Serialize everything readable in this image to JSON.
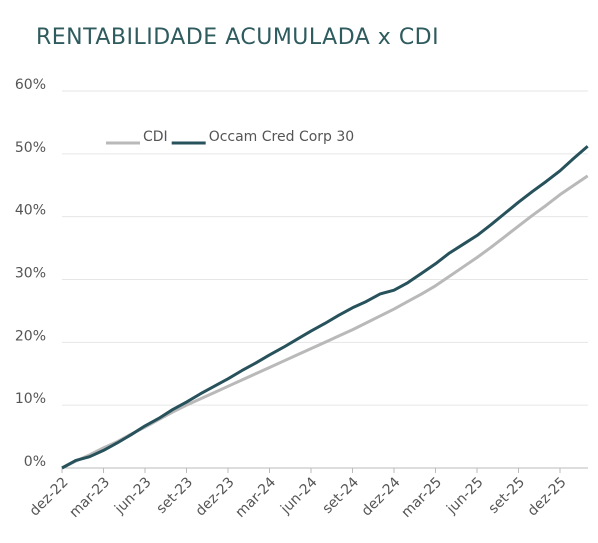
{
  "chart_data": {
    "type": "line",
    "title": "RENTABILIDADE ACUMULADA x CDI",
    "categories": [
      "dez-22",
      null,
      null,
      "mar-23",
      null,
      null,
      "jun-23",
      null,
      null,
      "set-23",
      null,
      null,
      "dez-23",
      null,
      null,
      "mar-24",
      null,
      null,
      "jun-24",
      null,
      null,
      "set-24",
      null,
      null,
      "dez-24",
      null,
      null,
      "mar-25",
      null,
      null,
      "jun-25",
      null,
      null,
      "set-25",
      null,
      null,
      "dez-25",
      null,
      null
    ],
    "series": [
      {
        "name": "CDI",
        "color": "#b9b9b9",
        "values": [
          0,
          1.1,
          2.1,
          3.2,
          4.2,
          5.4,
          6.5,
          7.7,
          8.9,
          10.0,
          11.0,
          12.0,
          13.0,
          14.0,
          15.0,
          16.0,
          17.0,
          18.0,
          19.0,
          20.0,
          21.0,
          22.0,
          23.1,
          24.2,
          25.3,
          26.5,
          27.7,
          29.0,
          30.5,
          32.0,
          33.5,
          35.1,
          36.8,
          38.5,
          40.2,
          41.8,
          43.5,
          45.0,
          46.5
        ]
      },
      {
        "name": "Occam Cred Corp 30",
        "color": "#27525c",
        "values": [
          0,
          1.2,
          1.8,
          2.8,
          4.0,
          5.3,
          6.7,
          7.9,
          9.3,
          10.5,
          11.8,
          13.0,
          14.2,
          15.5,
          16.7,
          18.0,
          19.2,
          20.5,
          21.8,
          23.0,
          24.3,
          25.5,
          26.5,
          27.7,
          28.3,
          29.5,
          31.0,
          32.5,
          34.2,
          35.6,
          37.0,
          38.7,
          40.5,
          42.3,
          44.0,
          45.6,
          47.3,
          49.3,
          51.2
        ]
      }
    ],
    "ylim": [
      0,
      60
    ],
    "yticks": [
      {
        "value": 0,
        "label": "0%"
      },
      {
        "value": 10,
        "label": "10%"
      },
      {
        "value": 20,
        "label": "20%"
      },
      {
        "value": 30,
        "label": "30%"
      },
      {
        "value": 40,
        "label": "40%"
      },
      {
        "value": 50,
        "label": "50%"
      },
      {
        "value": 60,
        "label": "60%"
      }
    ],
    "grid": true,
    "legend": "top-left"
  }
}
